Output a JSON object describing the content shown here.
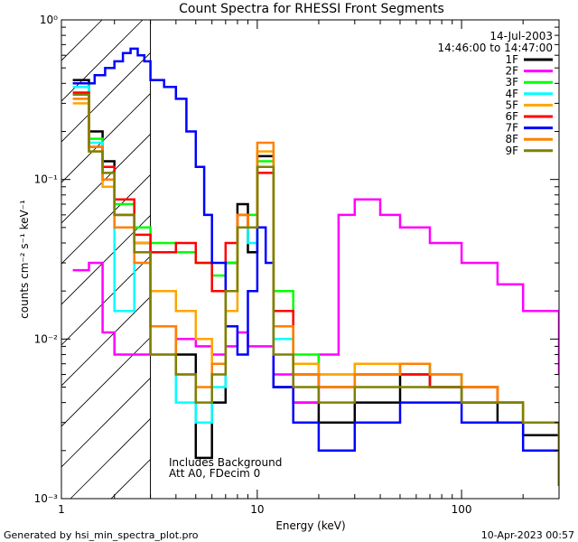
{
  "chart_data": {
    "type": "line",
    "title": "Count Spectra for RHESSI Front Segments",
    "xlabel": "Energy (keV)",
    "ylabel": "counts cm⁻² s⁻¹ keV⁻¹",
    "xscale": "log",
    "yscale": "log",
    "xlim": [
      1.1,
      300
    ],
    "ylim": [
      0.001,
      1
    ],
    "x_ticks": [
      {
        "value": 1,
        "label": "1"
      },
      {
        "value": 10,
        "label": "10"
      },
      {
        "value": 100,
        "label": "100"
      }
    ],
    "y_ticks": [
      {
        "value": 0.001,
        "label": "10⁻³"
      },
      {
        "value": 0.01,
        "label": "10⁻²"
      },
      {
        "value": 0.1,
        "label": "10⁻¹"
      },
      {
        "value": 1,
        "label": "10⁰"
      }
    ],
    "grid": false,
    "legend_position": "top-right",
    "hatched_region_xmax": 3,
    "header_lines": [
      "14-Jul-2003",
      "14:46:00 to 14:47:00"
    ],
    "annotations": [
      "Includes Background",
      "Att A0, FDecim 0"
    ],
    "footer_left": "Generated by hsi_min_spectra_plot.pro",
    "footer_right": "10-Apr-2023 00:57",
    "series": [
      {
        "name": "1F",
        "color": "#000000",
        "x": [
          1.25,
          1.5,
          1.75,
          2,
          2.5,
          3,
          4,
          5,
          6,
          7,
          8,
          9,
          10,
          12,
          15,
          20,
          30,
          50,
          70,
          100,
          150,
          200,
          300
        ],
        "y": [
          0.42,
          0.2,
          0.13,
          0.06,
          0.04,
          0.012,
          0.008,
          0.0018,
          0.004,
          0.03,
          0.07,
          0.035,
          0.14,
          0.005,
          0.004,
          0.003,
          0.004,
          0.006,
          0.005,
          0.004,
          0.003,
          0.0025,
          0.0012
        ]
      },
      {
        "name": "2F",
        "color": "#ff00ff",
        "x": [
          1.25,
          1.5,
          1.75,
          2,
          2.5,
          3,
          4,
          5,
          6,
          7,
          8,
          9,
          10,
          12,
          15,
          20,
          25,
          30,
          40,
          50,
          70,
          100,
          150,
          200,
          300
        ],
        "y": [
          0.027,
          0.03,
          0.011,
          0.008,
          0.008,
          0.012,
          0.01,
          0.009,
          0.008,
          0.009,
          0.011,
          0.009,
          0.009,
          0.006,
          0.004,
          0.008,
          0.06,
          0.075,
          0.06,
          0.05,
          0.04,
          0.03,
          0.022,
          0.015,
          0.006
        ]
      },
      {
        "name": "3F",
        "color": "#00ff00",
        "x": [
          1.25,
          1.5,
          1.75,
          2,
          2.5,
          3,
          4,
          5,
          6,
          7,
          8,
          9,
          10,
          12,
          15,
          20,
          30,
          50,
          70,
          100,
          150,
          200,
          300
        ],
        "y": [
          0.4,
          0.18,
          0.1,
          0.07,
          0.05,
          0.04,
          0.035,
          0.03,
          0.025,
          0.03,
          0.05,
          0.06,
          0.13,
          0.02,
          0.008,
          0.006,
          0.007,
          0.007,
          0.006,
          0.005,
          0.004,
          0.003,
          0.0015
        ]
      },
      {
        "name": "4F",
        "color": "#00ffff",
        "x": [
          1.25,
          1.5,
          1.75,
          2,
          2.5,
          3,
          4,
          5,
          6,
          7,
          8,
          9,
          10,
          12,
          15,
          20,
          30,
          50,
          70,
          100,
          150,
          200,
          300
        ],
        "y": [
          0.38,
          0.17,
          0.11,
          0.015,
          0.03,
          0.008,
          0.004,
          0.003,
          0.005,
          0.02,
          0.05,
          0.04,
          0.12,
          0.01,
          0.006,
          0.005,
          0.006,
          0.007,
          0.006,
          0.005,
          0.004,
          0.003,
          0.0015
        ]
      },
      {
        "name": "5F",
        "color": "#ffa500",
        "x": [
          1.25,
          1.5,
          1.75,
          2,
          2.5,
          3,
          4,
          5,
          6,
          7,
          8,
          9,
          10,
          12,
          15,
          20,
          30,
          50,
          70,
          100,
          150,
          200,
          300
        ],
        "y": [
          0.3,
          0.15,
          0.09,
          0.06,
          0.04,
          0.02,
          0.015,
          0.01,
          0.007,
          0.015,
          0.06,
          0.05,
          0.15,
          0.015,
          0.007,
          0.006,
          0.007,
          0.006,
          0.006,
          0.005,
          0.004,
          0.003,
          0.0015
        ]
      },
      {
        "name": "6F",
        "color": "#ff0000",
        "x": [
          1.25,
          1.5,
          1.75,
          2,
          2.5,
          3,
          4,
          5,
          6,
          7,
          8,
          9,
          10,
          12,
          15,
          20,
          30,
          50,
          70,
          100,
          150,
          200,
          300
        ],
        "y": [
          0.35,
          0.16,
          0.12,
          0.075,
          0.045,
          0.035,
          0.04,
          0.03,
          0.02,
          0.04,
          0.06,
          0.05,
          0.11,
          0.015,
          0.006,
          0.005,
          0.006,
          0.006,
          0.005,
          0.005,
          0.004,
          0.003,
          0.0015
        ]
      },
      {
        "name": "7F",
        "color": "#0000ff",
        "x": [
          1.25,
          1.4,
          1.6,
          1.8,
          2,
          2.2,
          2.4,
          2.6,
          2.8,
          3,
          3.5,
          4,
          4.5,
          5,
          5.5,
          6,
          7,
          8,
          9,
          10,
          11,
          12,
          15,
          20,
          30,
          50,
          70,
          100,
          150,
          200,
          300
        ],
        "y": [
          0.4,
          0.4,
          0.45,
          0.5,
          0.55,
          0.62,
          0.66,
          0.6,
          0.55,
          0.42,
          0.38,
          0.32,
          0.2,
          0.12,
          0.06,
          0.03,
          0.012,
          0.008,
          0.02,
          0.05,
          0.03,
          0.005,
          0.003,
          0.002,
          0.003,
          0.004,
          0.004,
          0.003,
          0.003,
          0.002,
          0.0012
        ]
      },
      {
        "name": "8F",
        "color": "#ff8000",
        "x": [
          1.25,
          1.5,
          1.75,
          2,
          2.5,
          3,
          4,
          5,
          6,
          7,
          8,
          9,
          10,
          12,
          15,
          20,
          30,
          50,
          70,
          100,
          150,
          200,
          300
        ],
        "y": [
          0.32,
          0.16,
          0.1,
          0.05,
          0.03,
          0.012,
          0.006,
          0.005,
          0.007,
          0.02,
          0.06,
          0.05,
          0.17,
          0.012,
          0.006,
          0.005,
          0.006,
          0.007,
          0.006,
          0.005,
          0.004,
          0.003,
          0.0012
        ]
      },
      {
        "name": "9F",
        "color": "#808000",
        "x": [
          1.25,
          1.5,
          1.75,
          2,
          2.5,
          3,
          4,
          5,
          6,
          7,
          8,
          9,
          10,
          12,
          15,
          20,
          30,
          50,
          70,
          100,
          150,
          200,
          300
        ],
        "y": [
          0.34,
          0.15,
          0.11,
          0.06,
          0.035,
          0.008,
          0.006,
          0.004,
          0.006,
          0.02,
          0.05,
          0.05,
          0.12,
          0.008,
          0.005,
          0.004,
          0.005,
          0.005,
          0.005,
          0.004,
          0.004,
          0.003,
          0.0012
        ]
      }
    ]
  }
}
